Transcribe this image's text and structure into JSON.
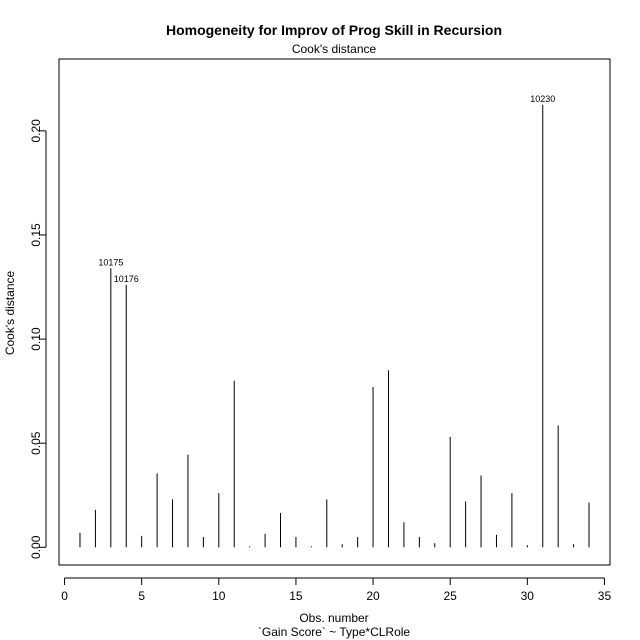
{
  "chart_data": {
    "type": "bar",
    "title": "Homogeneity for Improv of Prog Skill in Recursion",
    "subtitle": "Cook's distance",
    "xlabel": "Obs. number",
    "xsublabel": "`Gain Score` ~ Type*CLRole",
    "ylabel": "Cook's distance",
    "xlim": [
      -0.36,
      35.36
    ],
    "ylim": [
      -0.0085,
      0.2345
    ],
    "xticks": [
      "0",
      "5",
      "10",
      "15",
      "20",
      "25",
      "30",
      "35"
    ],
    "yticks": [
      "0.00",
      "0.05",
      "0.10",
      "0.15",
      "0.20"
    ],
    "grid": false,
    "x": [
      1,
      2,
      3,
      4,
      5,
      6,
      7,
      8,
      9,
      10,
      11,
      12,
      13,
      14,
      15,
      16,
      17,
      18,
      19,
      20,
      21,
      22,
      23,
      24,
      25,
      26,
      27,
      28,
      29,
      30,
      31,
      32,
      33,
      34
    ],
    "values": [
      0.007,
      0.018,
      0.134,
      0.126,
      0.0055,
      0.0355,
      0.023,
      0.0445,
      0.005,
      0.026,
      0.08,
      0.0005,
      0.0065,
      0.0165,
      0.005,
      0.0005,
      0.023,
      0.0015,
      0.005,
      0.077,
      0.085,
      0.012,
      0.005,
      0.002,
      0.053,
      0.022,
      0.0345,
      0.006,
      0.026,
      0.001,
      0.2125,
      0.0585,
      0.0015,
      0.0215
    ],
    "annotations": [
      {
        "x": 3,
        "y": 0.134,
        "label": "10175"
      },
      {
        "x": 4,
        "y": 0.126,
        "label": "10176"
      },
      {
        "x": 31,
        "y": 0.2125,
        "label": "10230"
      }
    ]
  }
}
